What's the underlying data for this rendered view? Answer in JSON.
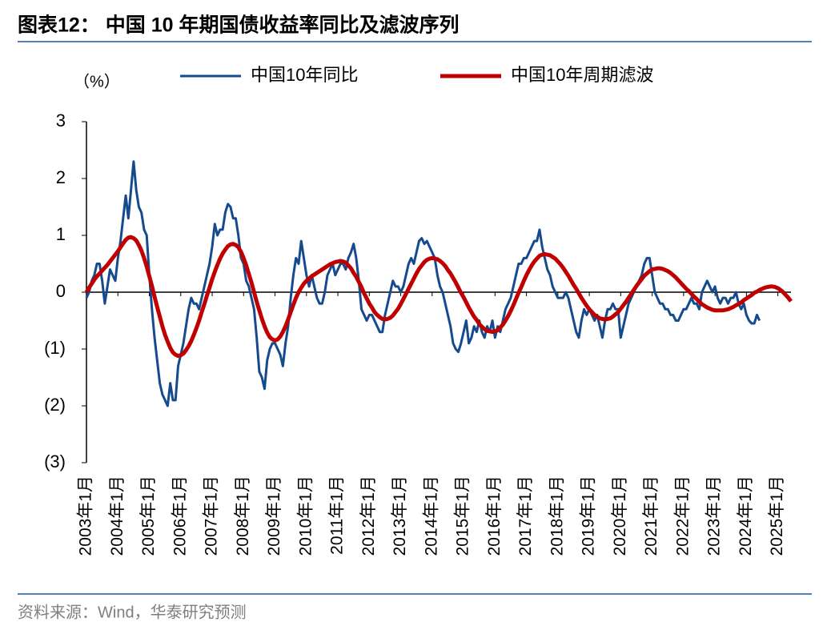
{
  "chart_data": {
    "type": "line",
    "title": "图表12：  中国 10 年期国债收益率同比及滤波序列",
    "y_label": "（%）",
    "source": "资料来源：Wind，华泰研究预测",
    "categories": [
      "2003年1月",
      null,
      null,
      null,
      null,
      null,
      null,
      null,
      null,
      null,
      null,
      null,
      "2004年1月",
      null,
      null,
      null,
      null,
      null,
      null,
      null,
      null,
      null,
      null,
      null,
      "2005年1月",
      null,
      null,
      null,
      null,
      null,
      null,
      null,
      null,
      null,
      null,
      null,
      "2006年1月",
      null,
      null,
      null,
      null,
      null,
      null,
      null,
      null,
      null,
      null,
      null,
      "2007年1月",
      null,
      null,
      null,
      null,
      null,
      null,
      null,
      null,
      null,
      null,
      null,
      "2008年1月",
      null,
      null,
      null,
      null,
      null,
      null,
      null,
      null,
      null,
      null,
      null,
      "2009年1月",
      null,
      null,
      null,
      null,
      null,
      null,
      null,
      null,
      null,
      null,
      null,
      "2010年1月",
      null,
      null,
      null,
      null,
      null,
      null,
      null,
      null,
      null,
      null,
      null,
      "2011年1月",
      null,
      null,
      null,
      null,
      null,
      null,
      null,
      null,
      null,
      null,
      null,
      "2012年1月",
      null,
      null,
      null,
      null,
      null,
      null,
      null,
      null,
      null,
      null,
      null,
      "2013年1月",
      null,
      null,
      null,
      null,
      null,
      null,
      null,
      null,
      null,
      null,
      null,
      "2014年1月",
      null,
      null,
      null,
      null,
      null,
      null,
      null,
      null,
      null,
      null,
      null,
      "2015年1月",
      null,
      null,
      null,
      null,
      null,
      null,
      null,
      null,
      null,
      null,
      null,
      "2016年1月",
      null,
      null,
      null,
      null,
      null,
      null,
      null,
      null,
      null,
      null,
      null,
      "2017年1月",
      null,
      null,
      null,
      null,
      null,
      null,
      null,
      null,
      null,
      null,
      null,
      "2018年1月",
      null,
      null,
      null,
      null,
      null,
      null,
      null,
      null,
      null,
      null,
      null,
      "2019年1月",
      null,
      null,
      null,
      null,
      null,
      null,
      null,
      null,
      null,
      null,
      null,
      "2020年1月",
      null,
      null,
      null,
      null,
      null,
      null,
      null,
      null,
      null,
      null,
      null,
      "2021年1月",
      null,
      null,
      null,
      null,
      null,
      null,
      null,
      null,
      null,
      null,
      null,
      "2022年1月",
      null,
      null,
      null,
      null,
      null,
      null,
      null,
      null,
      null,
      null,
      null,
      "2023年1月",
      null,
      null,
      null,
      null,
      null,
      null,
      null,
      null,
      null,
      null,
      null,
      "2024年1月",
      null,
      null,
      null,
      null,
      null,
      null,
      null,
      null,
      null,
      null,
      null,
      "2025年1月",
      null,
      null,
      null,
      null,
      null
    ],
    "series": [
      {
        "name": "中国10年同比",
        "color": "#154a8f",
        "width": 3,
        "values": [
          -0.1,
          0.0,
          0.2,
          0.3,
          0.5,
          0.5,
          0.2,
          -0.2,
          0.1,
          0.4,
          0.3,
          0.2,
          0.6,
          0.9,
          1.3,
          1.7,
          1.3,
          1.8,
          2.3,
          1.8,
          1.5,
          1.4,
          1.1,
          1.0,
          0.3,
          -0.3,
          -0.8,
          -1.2,
          -1.6,
          -1.8,
          -1.9,
          -2.0,
          -1.6,
          -1.9,
          -1.9,
          -1.3,
          -1.1,
          -0.9,
          -0.6,
          -0.3,
          -0.1,
          -0.2,
          -0.2,
          -0.3,
          -0.1,
          0.1,
          0.3,
          0.5,
          0.8,
          1.2,
          1.0,
          1.1,
          1.1,
          1.4,
          1.55,
          1.5,
          1.3,
          1.3,
          1.0,
          0.6,
          0.5,
          0.2,
          0.1,
          -0.1,
          -0.3,
          -0.8,
          -1.4,
          -1.5,
          -1.7,
          -1.2,
          -1.0,
          -0.9,
          -0.9,
          -1.0,
          -1.1,
          -1.3,
          -0.9,
          -0.6,
          -0.1,
          0.3,
          0.6,
          0.5,
          0.9,
          0.6,
          0.3,
          0.1,
          0.3,
          0.1,
          -0.1,
          -0.2,
          -0.2,
          0.0,
          0.3,
          0.4,
          0.5,
          0.3,
          0.4,
          0.5,
          0.5,
          0.4,
          0.6,
          0.7,
          0.85,
          0.6,
          0.2,
          -0.3,
          -0.4,
          -0.5,
          -0.4,
          -0.4,
          -0.5,
          -0.6,
          -0.7,
          -0.7,
          -0.4,
          -0.2,
          0.0,
          0.2,
          0.1,
          0.1,
          0.0,
          0.1,
          0.3,
          0.5,
          0.6,
          0.5,
          0.7,
          0.9,
          0.95,
          0.85,
          0.9,
          0.8,
          0.7,
          0.6,
          0.3,
          0.1,
          0.0,
          -0.2,
          -0.4,
          -0.6,
          -0.9,
          -1.0,
          -1.05,
          -0.9,
          -0.7,
          -0.5,
          -0.9,
          -0.8,
          -0.6,
          -0.7,
          -0.5,
          -0.7,
          -0.8,
          -0.6,
          -0.7,
          -0.5,
          -0.8,
          -0.6,
          -0.7,
          -0.5,
          -0.3,
          -0.2,
          -0.1,
          0.1,
          0.3,
          0.5,
          0.5,
          0.6,
          0.6,
          0.7,
          0.8,
          0.9,
          0.9,
          1.1,
          0.8,
          0.6,
          0.4,
          0.3,
          0.1,
          0.0,
          -0.1,
          -0.1,
          -0.1,
          0.0,
          -0.1,
          -0.3,
          -0.5,
          -0.7,
          -0.8,
          -0.5,
          -0.3,
          -0.4,
          -0.3,
          -0.4,
          -0.5,
          -0.4,
          -0.6,
          -0.8,
          -0.5,
          -0.3,
          -0.3,
          -0.2,
          -0.3,
          -0.3,
          -0.8,
          -0.6,
          -0.4,
          -0.2,
          -0.1,
          0.0,
          0.1,
          0.2,
          0.3,
          0.5,
          0.6,
          0.6,
          0.3,
          0.0,
          -0.1,
          -0.2,
          -0.2,
          -0.3,
          -0.3,
          -0.4,
          -0.4,
          -0.5,
          -0.5,
          -0.4,
          -0.3,
          -0.3,
          -0.2,
          -0.1,
          -0.2,
          -0.2,
          -0.3,
          0.0,
          0.1,
          0.2,
          0.1,
          0.0,
          0.1,
          -0.1,
          -0.2,
          -0.1,
          -0.1,
          -0.2,
          -0.1,
          -0.1,
          0.0,
          -0.2,
          -0.3,
          -0.2,
          -0.4,
          -0.5,
          -0.55,
          -0.55,
          -0.4,
          -0.5,
          null,
          null,
          null,
          null,
          null,
          null,
          null,
          null,
          null,
          null,
          null,
          null
        ]
      },
      {
        "name": "中国10年周期滤波",
        "color": "#c00000",
        "width": 5,
        "values": [
          0,
          0.08,
          0.15,
          0.22,
          0.28,
          0.33,
          0.38,
          0.43,
          0.48,
          0.54,
          0.6,
          0.66,
          0.72,
          0.79,
          0.86,
          0.92,
          0.96,
          0.97,
          0.95,
          0.91,
          0.83,
          0.73,
          0.6,
          0.45,
          0.28,
          0.11,
          -0.08,
          -0.26,
          -0.43,
          -0.6,
          -0.75,
          -0.87,
          -0.98,
          -1.06,
          -1.1,
          -1.12,
          -1.11,
          -1.08,
          -1.02,
          -0.95,
          -0.86,
          -0.75,
          -0.63,
          -0.5,
          -0.35,
          -0.21,
          -0.06,
          0.08,
          0.23,
          0.36,
          0.48,
          0.59,
          0.68,
          0.75,
          0.81,
          0.84,
          0.85,
          0.83,
          0.79,
          0.71,
          0.6,
          0.47,
          0.32,
          0.17,
          0,
          -0.17,
          -0.32,
          -0.47,
          -0.6,
          -0.71,
          -0.79,
          -0.83,
          -0.85,
          -0.83,
          -0.78,
          -0.7,
          -0.6,
          -0.48,
          -0.35,
          -0.22,
          -0.1,
          0,
          0.08,
          0.15,
          0.2,
          0.24,
          0.28,
          0.31,
          0.34,
          0.37,
          0.4,
          0.43,
          0.46,
          0.49,
          0.51,
          0.53,
          0.54,
          0.55,
          0.54,
          0.52,
          0.47,
          0.42,
          0.34,
          0.27,
          0.18,
          0.09,
          -0.02,
          -0.11,
          -0.2,
          -0.27,
          -0.35,
          -0.4,
          -0.44,
          -0.47,
          -0.48,
          -0.47,
          -0.45,
          -0.41,
          -0.35,
          -0.29,
          -0.21,
          -0.12,
          -0.03,
          0.06,
          0.15,
          0.24,
          0.33,
          0.41,
          0.47,
          0.53,
          0.57,
          0.59,
          0.6,
          0.59,
          0.58,
          0.55,
          0.51,
          0.46,
          0.39,
          0.33,
          0.25,
          0.17,
          0.08,
          -0.01,
          -0.09,
          -0.18,
          -0.27,
          -0.35,
          -0.43,
          -0.49,
          -0.56,
          -0.61,
          -0.65,
          -0.68,
          -0.69,
          -0.7,
          -0.69,
          -0.67,
          -0.62,
          -0.57,
          -0.5,
          -0.42,
          -0.33,
          -0.23,
          -0.12,
          -0.01,
          0.09,
          0.2,
          0.3,
          0.39,
          0.47,
          0.54,
          0.59,
          0.64,
          0.66,
          0.67,
          0.66,
          0.65,
          0.62,
          0.59,
          0.54,
          0.49,
          0.43,
          0.36,
          0.29,
          0.21,
          0.13,
          0.06,
          -0.02,
          -0.1,
          -0.17,
          -0.24,
          -0.3,
          -0.35,
          -0.4,
          -0.43,
          -0.46,
          -0.47,
          -0.48,
          -0.47,
          -0.46,
          -0.43,
          -0.39,
          -0.35,
          -0.29,
          -0.23,
          -0.17,
          -0.1,
          -0.03,
          0.04,
          0.11,
          0.17,
          0.23,
          0.29,
          0.33,
          0.37,
          0.4,
          0.41,
          0.42,
          0.42,
          0.41,
          0.39,
          0.37,
          0.34,
          0.3,
          0.26,
          0.21,
          0.16,
          0.11,
          0.06,
          0.02,
          -0.03,
          -0.08,
          -0.12,
          -0.17,
          -0.21,
          -0.24,
          -0.27,
          -0.29,
          -0.31,
          -0.32,
          -0.32,
          -0.32,
          -0.32,
          -0.31,
          -0.3,
          -0.28,
          -0.26,
          -0.23,
          -0.21,
          -0.18,
          -0.14,
          -0.11,
          -0.08,
          -0.05,
          -0.01,
          0.01,
          0.04,
          0.06,
          0.08,
          0.09,
          0.1,
          0.1,
          0.09,
          0.07,
          0.04,
          0,
          -0.05,
          -0.1,
          -0.16
        ]
      }
    ],
    "ylim": [
      -3,
      3
    ],
    "yticks": [
      {
        "value": -3,
        "label": "(3)"
      },
      {
        "value": -2,
        "label": "(2)"
      },
      {
        "value": -1,
        "label": "(1)"
      },
      0,
      1,
      2,
      3
    ],
    "grid": false
  }
}
